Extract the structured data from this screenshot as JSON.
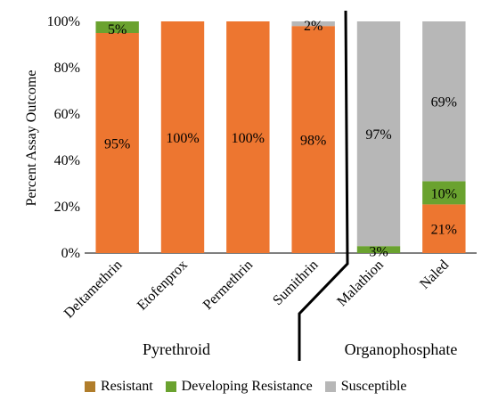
{
  "chart_data": {
    "type": "bar",
    "stacked": true,
    "ylabel": "Percent Assay Outcome",
    "ylim": [
      0,
      100
    ],
    "yticks": [
      "0%",
      "20%",
      "40%",
      "60%",
      "80%",
      "100%"
    ],
    "categories": [
      "Deltamethrin",
      "Etofenprox",
      "Permethrin",
      "Sumithrin",
      "Malathion",
      "Naled"
    ],
    "groups": [
      {
        "label": "Pyrethroid",
        "categories": [
          "Deltamethrin",
          "Etofenprox",
          "Permethrin",
          "Sumithrin"
        ]
      },
      {
        "label": "Organophosphate",
        "categories": [
          "Malathion",
          "Naled"
        ]
      }
    ],
    "series": [
      {
        "name": "Resistant",
        "color": "#b07d2b",
        "values": [
          95,
          100,
          100,
          98,
          0,
          21
        ]
      },
      {
        "name": "Developing Resistance",
        "color": "#6aa22f",
        "values": [
          5,
          0,
          0,
          0,
          3,
          10
        ]
      },
      {
        "name": "Susceptible",
        "color": "#b7b7b7",
        "values": [
          0,
          0,
          0,
          2,
          97,
          69
        ]
      }
    ],
    "bar_fill_resistant": "#ed7630",
    "data_labels": [
      {
        "category": "Deltamethrin",
        "series": "Resistant",
        "text": "95%"
      },
      {
        "category": "Deltamethrin",
        "series": "Developing Resistance",
        "text": "5%"
      },
      {
        "category": "Etofenprox",
        "series": "Resistant",
        "text": "100%"
      },
      {
        "category": "Permethrin",
        "series": "Resistant",
        "text": "100%"
      },
      {
        "category": "Sumithrin",
        "series": "Resistant",
        "text": "98%"
      },
      {
        "category": "Sumithrin",
        "series": "Susceptible",
        "text": "2%"
      },
      {
        "category": "Malathion",
        "series": "Developing Resistance",
        "text": "3%"
      },
      {
        "category": "Malathion",
        "series": "Susceptible",
        "text": "97%"
      },
      {
        "category": "Naled",
        "series": "Resistant",
        "text": "21%"
      },
      {
        "category": "Naled",
        "series": "Developing Resistance",
        "text": "10%"
      },
      {
        "category": "Naled",
        "series": "Susceptible",
        "text": "69%"
      }
    ],
    "legend": {
      "position": "bottom"
    }
  }
}
